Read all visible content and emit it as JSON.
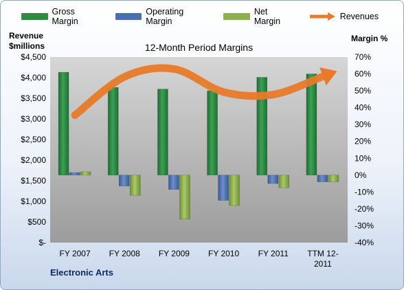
{
  "legend": {
    "gross": "Gross Margin",
    "operating": "Operating Margin",
    "net": "Net Margin",
    "revenues": "Revenues"
  },
  "left_axis_label_line1": "Revenue",
  "left_axis_label_line2": "$millions",
  "right_axis_label": "Margin %",
  "company": "Electronic Arts",
  "colors": {
    "gross": "#2f8a42",
    "operating": "#4a6fb0",
    "net": "#8cb04c",
    "revenues": "#e87a2a",
    "plot_top": "#d4d4d4",
    "plot_bottom": "#9a9a9a"
  },
  "chart_data": {
    "type": "bar",
    "title": "12-Month Period Margins",
    "categories": [
      "FY 2007",
      "FY 2008",
      "FY 2009",
      "FY 2010",
      "FY 2011",
      "TTM 12-2011"
    ],
    "series": [
      {
        "name": "Gross Margin",
        "axis": "right",
        "values": [
          61,
          52,
          51,
          50,
          58,
          60
        ]
      },
      {
        "name": "Operating Margin",
        "axis": "right",
        "values": [
          1.5,
          -6.5,
          -8.5,
          -15,
          -5,
          -4
        ]
      },
      {
        "name": "Net Margin",
        "axis": "right",
        "values": [
          2,
          -12,
          -26,
          -18,
          -7.5,
          -4
        ]
      },
      {
        "name": "Revenues",
        "axis": "left",
        "type": "line",
        "values": [
          3090,
          4020,
          4210,
          3650,
          3590,
          4030
        ]
      }
    ],
    "left_axis": {
      "min": 0,
      "max": 4500,
      "step": 500,
      "ticks": [
        "$-",
        "$500",
        "$1,000",
        "$1,500",
        "$2,000",
        "$2,500",
        "$3,000",
        "$3,500",
        "$4,000",
        "$4,500"
      ]
    },
    "right_axis": {
      "min": -40,
      "max": 70,
      "step": 10,
      "ticks": [
        "-40%",
        "-30%",
        "-20%",
        "-10%",
        "0%",
        "10%",
        "20%",
        "30%",
        "40%",
        "50%",
        "60%",
        "70%"
      ]
    },
    "category_labels": [
      [
        "FY 2007"
      ],
      [
        "FY 2008"
      ],
      [
        "FY 2009"
      ],
      [
        "FY 2010"
      ],
      [
        "FY 2011"
      ],
      [
        "TTM 12-",
        "2011"
      ]
    ],
    "legend_position": "top",
    "grid": false
  }
}
